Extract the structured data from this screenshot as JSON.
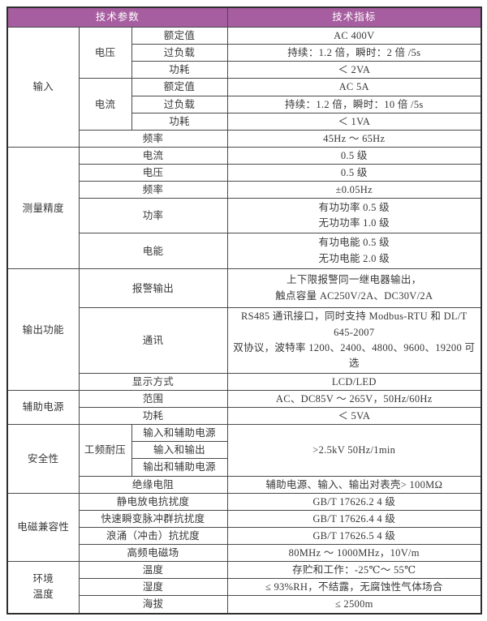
{
  "colors": {
    "header_bg": "#a75ea0",
    "header_text": "#ffffff",
    "border": "#4a4a4a",
    "text": "#383838"
  },
  "table": {
    "header": {
      "params": "技术参数",
      "specs": "技术指标"
    },
    "input": {
      "label": "输入",
      "voltage": {
        "label": "电压",
        "rated": {
          "param": "额定值",
          "value": "AC 400V"
        },
        "overload": {
          "param": "过负载",
          "value": "持续：1.2 倍，瞬时：2 倍 /5s"
        },
        "power": {
          "param": "功耗",
          "value": "＜ 2VA"
        }
      },
      "current": {
        "label": "电流",
        "rated": {
          "param": "额定值",
          "value": "AC 5A"
        },
        "overload": {
          "param": "过负载",
          "value": "持续：1.2 倍，瞬时：10 倍 /5s"
        },
        "power": {
          "param": "功耗",
          "value": "＜ 1VA"
        }
      },
      "frequency": {
        "param": "频率",
        "value": "45Hz ～ 65Hz"
      }
    },
    "accuracy": {
      "label": "测量精度",
      "rows": [
        {
          "param": "电流",
          "value": "0.5 级"
        },
        {
          "param": "电压",
          "value": "0.5 级"
        },
        {
          "param": "频率",
          "value": "±0.05Hz"
        },
        {
          "param": "功率",
          "value_line1": "有功功率 0.5 级",
          "value_line2": "无功功率 1.0 级"
        },
        {
          "param": "电能",
          "value_line1": "有功电能 0.5 级",
          "value_line2": "无功电能 2.0 级"
        }
      ]
    },
    "output": {
      "label": "输出功能",
      "alarm": {
        "param": "报警输出",
        "value_line1": "上下限报警同一继电器输出，",
        "value_line2": "触点容量 AC250V/2A、DC30V/2A"
      },
      "comm": {
        "param": "通讯",
        "value_line1": "RS485 通讯接口，同时支持 Modbus-RTU 和 DL/T 645-2007",
        "value_line2": "双协议，波特率 1200、2400、4800、9600、19200 可选"
      },
      "display": {
        "param": "显示方式",
        "value": "LCD/LED"
      }
    },
    "aux": {
      "label": "辅助电源",
      "range": {
        "param": "范围",
        "value": "AC、DC85V ～ 265V，50Hz/60Hz"
      },
      "power": {
        "param": "功耗",
        "value": "＜ 5VA"
      }
    },
    "safety": {
      "label": "安全性",
      "withstand": {
        "label": "工频耐压",
        "pairs": [
          "输入和辅助电源",
          "输入和输出",
          "输出和辅助电源"
        ],
        "value": ">2.5kV 50Hz/1min"
      },
      "insulation": {
        "param": "绝缘电阻",
        "value": "辅助电源、输入、输出对表壳> 100MΩ"
      }
    },
    "emc": {
      "label": "电磁兼容性",
      "rows": [
        {
          "param": "静电放电抗扰度",
          "value": "GB/T 17626.2 4 级"
        },
        {
          "param": "快速瞬变脉冲群抗扰度",
          "value": "GB/T 17626.4 4 级"
        },
        {
          "param": "浪涌（冲击）抗扰度",
          "value": "GB/T 17626.5 4 级"
        },
        {
          "param": "高频电磁场",
          "value": "80MHz ～ 1000MHz，10V/m"
        }
      ]
    },
    "env": {
      "label_line1": "环境",
      "label_line2": "温度",
      "rows": [
        {
          "param": "温度",
          "value": "存贮和工作：-25℃～ 55℃"
        },
        {
          "param": "湿度",
          "value": "≤ 93%RH，不结露，无腐蚀性气体场合"
        },
        {
          "param": "海拔",
          "value": "≤ 2500m"
        }
      ]
    }
  }
}
